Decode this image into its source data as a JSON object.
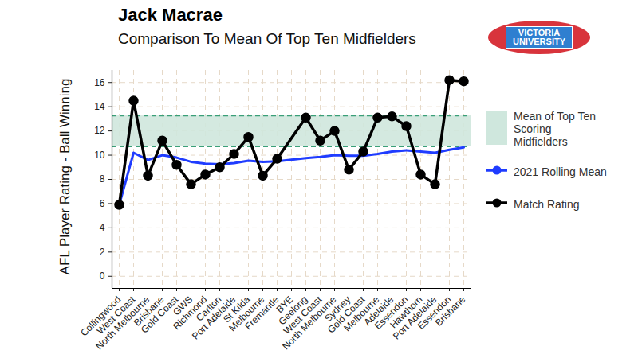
{
  "chart_data": {
    "type": "line",
    "title": "Jack Macrae",
    "subtitle": "Comparison To Mean Of Top Ten Midfielders",
    "ylabel": "AFL Player Rating - Ball Winning",
    "logo": [
      "VICTORIA",
      "UNIVERSITY"
    ],
    "categories": [
      "Collingwood",
      "West Coast",
      "North Melbourne",
      "Brisbane",
      "Gold Coast",
      "GWS",
      "Richmond",
      "Carlton",
      "Port Adelaide",
      "St Kilda",
      "Melbourne",
      "Fremantle",
      "BYE",
      "Geelong",
      "West Coast",
      "North Melbourne",
      "Sydney",
      "Gold Coast",
      "Melbourne",
      "Adelaide",
      "Essendon",
      "Hawthorn",
      "Port Adelaide",
      "Essendon",
      "Brisbane"
    ],
    "series": [
      {
        "name": "2021 Rolling Mean",
        "color": "#1f3cff",
        "line_style": "solid",
        "values": [
          5.9,
          10.2,
          9.6,
          10.0,
          9.8,
          9.45,
          9.3,
          9.25,
          9.35,
          9.55,
          9.45,
          9.5,
          null,
          9.75,
          9.85,
          10.0,
          9.95,
          9.95,
          10.1,
          10.3,
          10.4,
          10.3,
          10.2,
          10.45,
          10.65
        ]
      },
      {
        "name": "Match Rating",
        "color": "#000000",
        "line_style": "solid",
        "marker": "circle",
        "values": [
          5.9,
          14.5,
          8.3,
          11.2,
          9.2,
          7.6,
          8.4,
          9.0,
          10.1,
          11.5,
          8.3,
          9.7,
          null,
          13.1,
          11.2,
          12.0,
          8.8,
          10.3,
          13.1,
          13.2,
          12.4,
          8.4,
          7.6,
          16.2,
          16.1
        ]
      }
    ],
    "band": {
      "name": "Mean of Top Ten Scoring Midfielders",
      "color": "#cfe7dd",
      "edge_color": "#3a9f78",
      "line_style": "dashed",
      "range": [
        10.7,
        13.25
      ]
    },
    "ylim": [
      -1,
      17
    ],
    "yticks": [
      0,
      2,
      4,
      6,
      8,
      10,
      12,
      14,
      16
    ],
    "grid": true,
    "legend": "right"
  }
}
